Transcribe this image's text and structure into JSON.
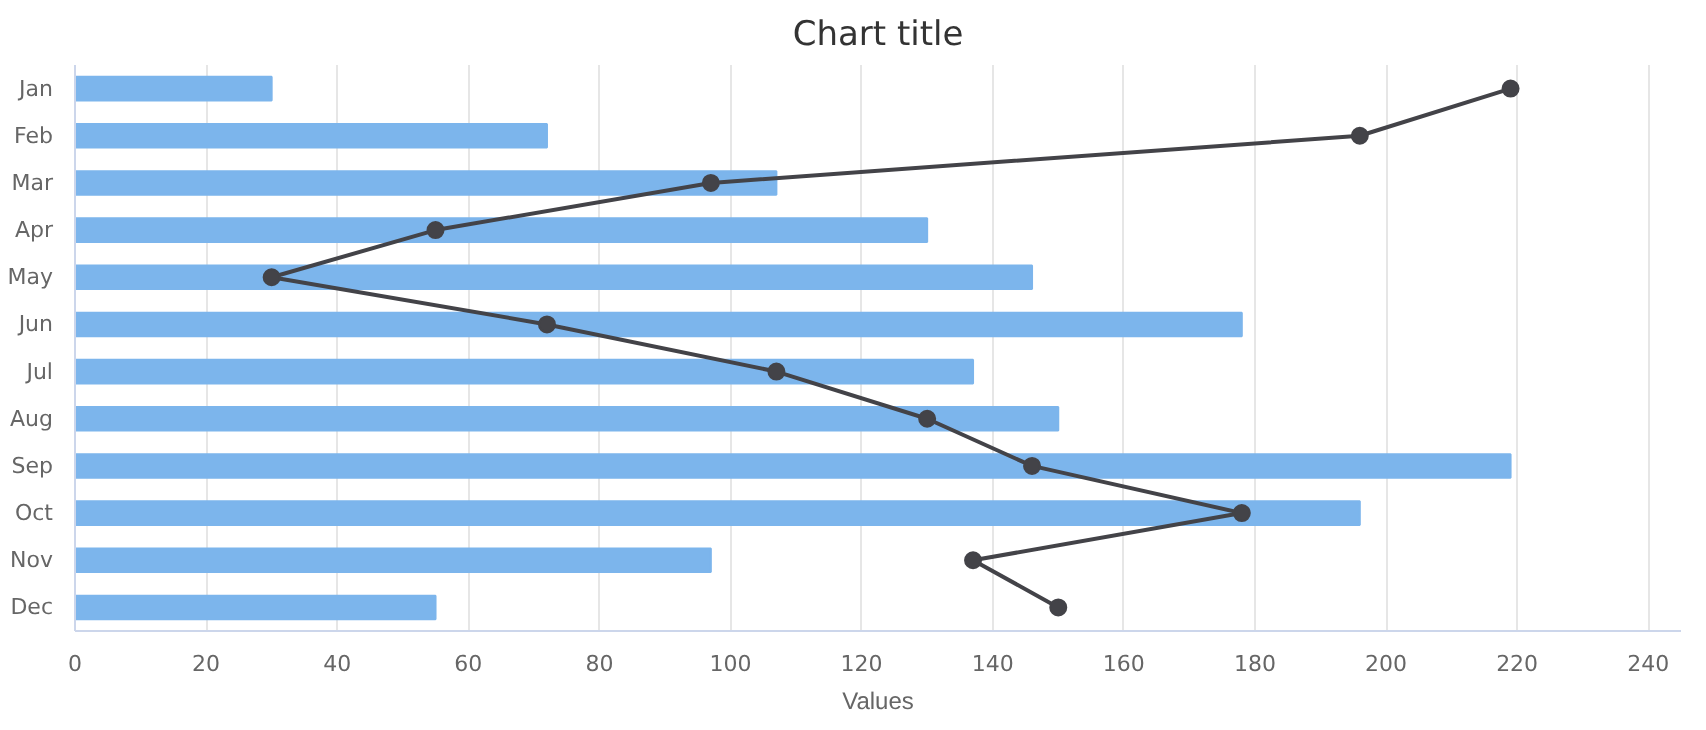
{
  "chart_data": {
    "type": "bar",
    "orientation": "horizontal",
    "title": "Chart title",
    "xlabel": "Values",
    "categories": [
      "Jan",
      "Feb",
      "Mar",
      "Apr",
      "May",
      "Jun",
      "Jul",
      "Aug",
      "Sep",
      "Oct",
      "Nov",
      "Dec"
    ],
    "series": [
      {
        "color": "#7cb5ec",
        "values": [
          30,
          72,
          107,
          130,
          146,
          178,
          137,
          150,
          219,
          196,
          97,
          55
        ]
      },
      {
        "type": "line",
        "color": "#434348",
        "values": [
          219,
          196,
          97,
          55,
          30,
          72,
          107,
          130,
          146,
          178,
          137,
          150
        ]
      }
    ],
    "xlim": [
      0,
      245
    ],
    "xticks": [
      0,
      20,
      40,
      60,
      80,
      100,
      120,
      140,
      160,
      180,
      200,
      220,
      240
    ],
    "grid": "x",
    "marker": "circle"
  }
}
